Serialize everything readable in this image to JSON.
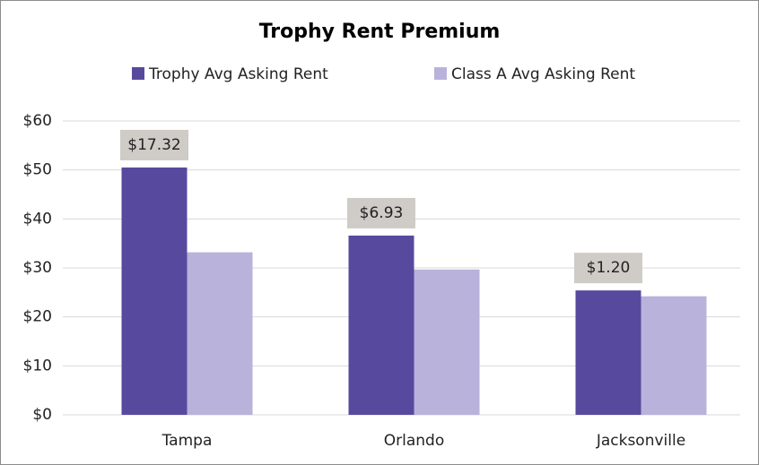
{
  "chart_data": {
    "type": "bar",
    "title": "Trophy Rent Premium",
    "categories": [
      "Tampa",
      "Orlando",
      "Jacksonville"
    ],
    "series": [
      {
        "name": "Trophy Avg Asking Rent",
        "color": "#574a9e",
        "values": [
          50.5,
          36.6,
          25.4
        ]
      },
      {
        "name": "Class A Avg Asking Rent",
        "color": "#b9b2db",
        "values": [
          33.18,
          29.67,
          24.2
        ]
      }
    ],
    "annotations": [
      "$17.32",
      "$6.93",
      "$1.20"
    ],
    "ylim": [
      0,
      60
    ],
    "yticks": [
      {
        "value": 0,
        "label": "$0"
      },
      {
        "value": 10,
        "label": "$10"
      },
      {
        "value": 20,
        "label": "$20"
      },
      {
        "value": 30,
        "label": "$30"
      },
      {
        "value": 40,
        "label": "$40"
      },
      {
        "value": 50,
        "label": "$50"
      },
      {
        "value": 60,
        "label": "$60"
      }
    ],
    "grid": true,
    "legend": "top"
  }
}
